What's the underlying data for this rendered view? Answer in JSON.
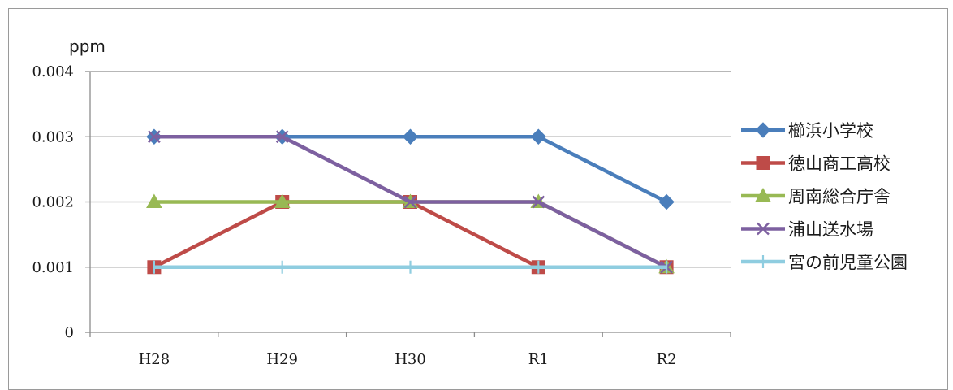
{
  "chart_data": {
    "type": "line",
    "title": "",
    "xlabel": "",
    "ylabel": "ppm",
    "categories": [
      "H28",
      "H29",
      "H30",
      "R1",
      "R2"
    ],
    "ylim": [
      0,
      0.004
    ],
    "yticks": [
      "0",
      "0.001",
      "0.002",
      "0.003",
      "0.004"
    ],
    "grid": true,
    "legend_position": "right",
    "series": [
      {
        "name": "櫛浜小学校",
        "color": "#4a7ebb",
        "marker": "diamond",
        "values": [
          0.003,
          0.003,
          0.003,
          0.003,
          0.002
        ]
      },
      {
        "name": "徳山商工高校",
        "color": "#be4b48",
        "marker": "square",
        "values": [
          0.001,
          0.002,
          0.002,
          0.001,
          0.001
        ]
      },
      {
        "name": "周南総合庁舎",
        "color": "#98b954",
        "marker": "triangle",
        "values": [
          0.002,
          0.002,
          0.002,
          0.002,
          0.001
        ]
      },
      {
        "name": "浦山送水場",
        "color": "#7d60a0",
        "marker": "x",
        "values": [
          0.003,
          0.003,
          0.002,
          0.002,
          0.001
        ]
      },
      {
        "name": "宮の前児童公園",
        "color": "#8fcde0",
        "marker": "plus",
        "values": [
          0.001,
          0.001,
          0.001,
          0.001,
          0.001
        ]
      }
    ]
  }
}
